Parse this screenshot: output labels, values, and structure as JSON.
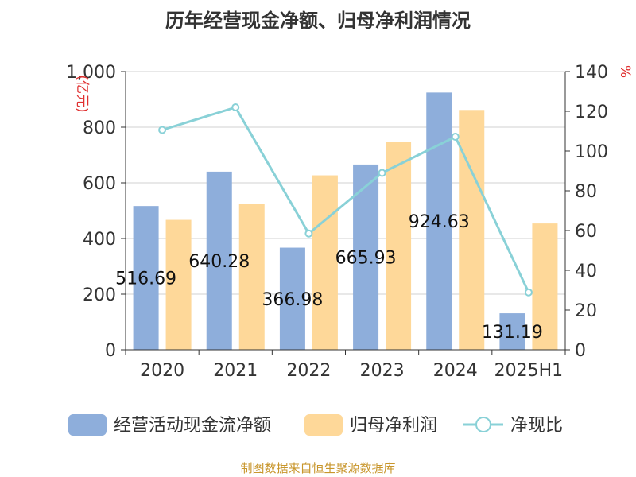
{
  "title": "历年经营现金净额、归母净利润情况",
  "footer": "制图数据来自恒生聚源数据库",
  "colors": {
    "bar1": "#8eaedb",
    "bar2": "#fed899",
    "line": "#89d1d7",
    "left_unit": "#e03030",
    "right_unit": "#e03030"
  },
  "chart_data": {
    "type": "bar",
    "categories": [
      "2020",
      "2021",
      "2022",
      "2023",
      "2024",
      "2025H1"
    ],
    "series": [
      {
        "name": "经营活动现金流净额",
        "type": "bar",
        "axis": "left",
        "values": [
          516.69,
          640.28,
          366.98,
          665.93,
          924.63,
          131.19
        ],
        "labels": [
          "516.69",
          "640.28",
          "366.98",
          "665.93",
          "924.63",
          "131.19"
        ]
      },
      {
        "name": "归母净利润",
        "type": "bar",
        "axis": "left",
        "values": [
          467,
          525,
          627,
          748,
          862,
          454
        ]
      },
      {
        "name": "净现比",
        "type": "line",
        "axis": "right",
        "values": [
          110.6,
          122,
          58.5,
          89,
          107.2,
          28.9
        ]
      }
    ],
    "y_left": {
      "unit": "(亿元)",
      "ylim": [
        0,
        1000
      ],
      "ticks": [
        "0",
        "200",
        "400",
        "600",
        "800",
        "1,000"
      ]
    },
    "y_right": {
      "unit": "%",
      "ylim": [
        0,
        140
      ],
      "ticks": [
        "0",
        "20",
        "40",
        "60",
        "80",
        "100",
        "120",
        "140"
      ]
    },
    "grid": true,
    "legend_position": "bottom"
  }
}
